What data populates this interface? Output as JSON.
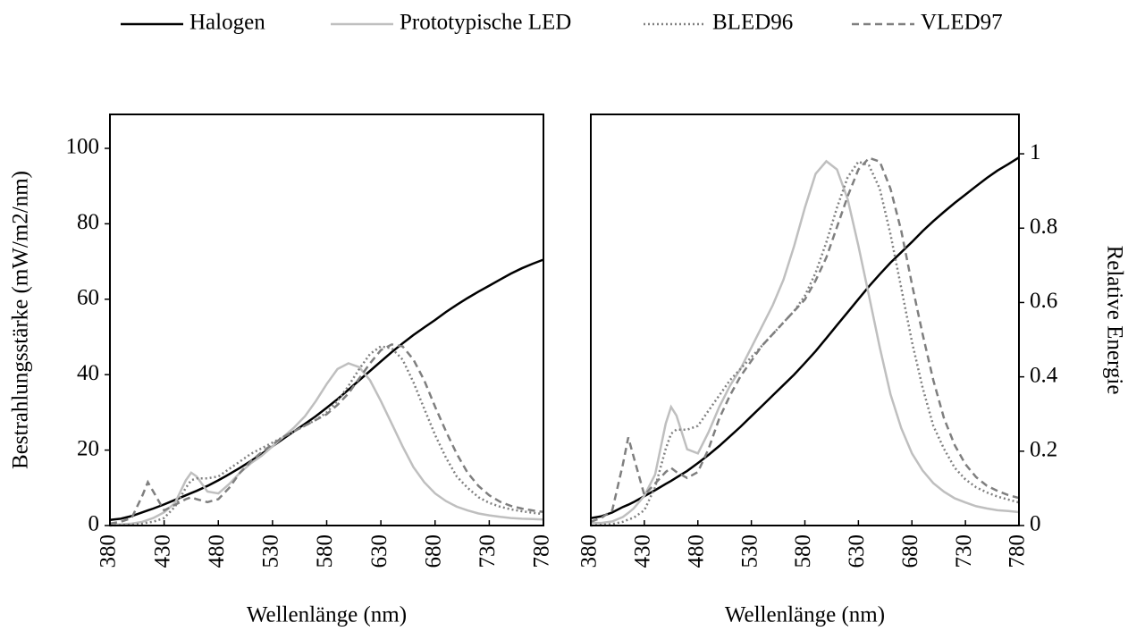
{
  "chart_data": [
    {
      "type": "line",
      "xlabel": "Wellenlänge (nm)",
      "ylabel": "Bestrahlungsstärke (mW/m2/nm)",
      "yaxis_side": "left",
      "xlim": [
        380,
        780
      ],
      "xticks": [
        380,
        430,
        480,
        530,
        580,
        630,
        680,
        730,
        780
      ],
      "ylim": [
        0,
        109
      ],
      "yticks": [
        0,
        20,
        40,
        60,
        80,
        100
      ],
      "grid": false,
      "x": [
        380,
        390,
        400,
        410,
        415,
        420,
        430,
        440,
        450,
        455,
        460,
        470,
        480,
        490,
        500,
        510,
        520,
        530,
        540,
        550,
        560,
        570,
        580,
        590,
        600,
        610,
        620,
        630,
        640,
        650,
        660,
        670,
        680,
        690,
        700,
        710,
        720,
        730,
        740,
        750,
        760,
        770,
        780
      ],
      "series": [
        {
          "name": "Halogen",
          "color": "#000000",
          "dash": "solid",
          "values": [
            1.5,
            1.8,
            2.5,
            3.5,
            4.0,
            4.5,
            5.6,
            6.8,
            8.0,
            8.6,
            9.2,
            10.5,
            12,
            13.6,
            15.3,
            17.1,
            19,
            21,
            23,
            25,
            27,
            29,
            31.2,
            33.5,
            36,
            38.5,
            41,
            43.5,
            46,
            48.3,
            50.5,
            52.5,
            54.5,
            56.6,
            58.5,
            60.3,
            62,
            63.6,
            65.2,
            66.8,
            68.2,
            69.4,
            70.5
          ]
        },
        {
          "name": "Prototypische LED",
          "color": "#bfbfbf",
          "dash": "solid",
          "values": [
            0.3,
            0.3,
            0.5,
            1,
            1.5,
            2,
            3.5,
            6,
            12,
            14,
            13,
            9,
            8.5,
            11,
            14,
            16.5,
            18.5,
            21,
            23.5,
            26,
            29,
            33,
            37.5,
            41.5,
            43,
            42,
            38.5,
            33,
            27,
            21,
            15.5,
            11.5,
            8.5,
            6.5,
            5,
            4,
            3.2,
            2.7,
            2.3,
            2,
            1.8,
            1.7,
            1.6
          ]
        },
        {
          "name": "BLED96",
          "color": "#808080",
          "dash": "dotted",
          "values": [
            0,
            0.1,
            0.2,
            0.5,
            0.8,
            1,
            2,
            5,
            10,
            12,
            12.5,
            12.5,
            13,
            15,
            17,
            19,
            20.5,
            22,
            23.5,
            25,
            26.5,
            28,
            30,
            33,
            37,
            41.5,
            45.5,
            47.5,
            47,
            44,
            38,
            31,
            24,
            18,
            13,
            10,
            7.5,
            6,
            5,
            4.3,
            3.8,
            3.4,
            3
          ]
        },
        {
          "name": "VLED97",
          "color": "#7f7f7f",
          "dash": "dashed",
          "values": [
            0.5,
            1,
            2,
            8,
            11.5,
            9,
            4,
            5.5,
            7,
            7.5,
            7,
            6.2,
            7,
            10,
            14,
            17,
            19.5,
            21.5,
            23.5,
            25,
            26.5,
            28,
            29.5,
            32,
            35,
            39,
            43,
            46.5,
            48,
            47.5,
            44,
            38.5,
            31.5,
            25,
            19,
            14,
            10.5,
            8,
            6.3,
            5.2,
            4.5,
            4,
            3.6
          ]
        }
      ]
    },
    {
      "type": "line",
      "xlabel": "Wellenlänge (nm)",
      "ylabel": "Relative Energie",
      "yaxis_side": "right",
      "xlim": [
        380,
        780
      ],
      "xticks": [
        380,
        430,
        480,
        530,
        580,
        630,
        680,
        730,
        780
      ],
      "ylim": [
        0,
        1.106
      ],
      "yticks": [
        0,
        0.2,
        0.4,
        0.6,
        0.8,
        1
      ],
      "grid": false,
      "x": [
        380,
        390,
        400,
        410,
        415,
        420,
        430,
        440,
        450,
        455,
        460,
        470,
        480,
        490,
        500,
        510,
        520,
        530,
        540,
        550,
        560,
        570,
        580,
        590,
        600,
        610,
        620,
        630,
        640,
        650,
        660,
        670,
        680,
        690,
        700,
        710,
        720,
        730,
        740,
        750,
        760,
        770,
        780
      ],
      "series": [
        {
          "color": "#000000",
          "dash": "solid",
          "values": [
            0.02,
            0.025,
            0.035,
            0.05,
            0.056,
            0.063,
            0.079,
            0.095,
            0.112,
            0.12,
            0.129,
            0.147,
            0.168,
            0.19,
            0.214,
            0.24,
            0.266,
            0.294,
            0.322,
            0.35,
            0.378,
            0.406,
            0.437,
            0.469,
            0.504,
            0.539,
            0.574,
            0.609,
            0.644,
            0.676,
            0.707,
            0.735,
            0.763,
            0.792,
            0.819,
            0.844,
            0.868,
            0.89,
            0.913,
            0.935,
            0.955,
            0.972,
            0.99
          ]
        },
        {
          "color": "#bfbfbf",
          "dash": "solid",
          "values": [
            0.007,
            0.007,
            0.011,
            0.023,
            0.034,
            0.046,
            0.08,
            0.137,
            0.274,
            0.319,
            0.296,
            0.205,
            0.194,
            0.251,
            0.319,
            0.376,
            0.422,
            0.479,
            0.536,
            0.593,
            0.661,
            0.752,
            0.855,
            0.946,
            0.98,
            0.958,
            0.878,
            0.752,
            0.616,
            0.479,
            0.353,
            0.262,
            0.194,
            0.148,
            0.114,
            0.091,
            0.073,
            0.062,
            0.052,
            0.046,
            0.041,
            0.039,
            0.036
          ]
        },
        {
          "color": "#808080",
          "dash": "dotted",
          "values": [
            0,
            0.002,
            0.004,
            0.01,
            0.016,
            0.021,
            0.041,
            0.103,
            0.206,
            0.247,
            0.258,
            0.258,
            0.268,
            0.309,
            0.35,
            0.391,
            0.422,
            0.453,
            0.484,
            0.515,
            0.546,
            0.577,
            0.618,
            0.68,
            0.762,
            0.855,
            0.937,
            0.979,
            0.968,
            0.906,
            0.783,
            0.639,
            0.494,
            0.371,
            0.268,
            0.206,
            0.155,
            0.124,
            0.103,
            0.089,
            0.078,
            0.07,
            0.062
          ]
        },
        {
          "color": "#7f7f7f",
          "dash": "dashed",
          "values": [
            0.01,
            0.021,
            0.041,
            0.165,
            0.237,
            0.185,
            0.082,
            0.113,
            0.144,
            0.155,
            0.144,
            0.128,
            0.144,
            0.206,
            0.288,
            0.35,
            0.402,
            0.443,
            0.484,
            0.515,
            0.546,
            0.577,
            0.608,
            0.659,
            0.721,
            0.803,
            0.886,
            0.958,
            0.989,
            0.979,
            0.906,
            0.793,
            0.649,
            0.515,
            0.391,
            0.288,
            0.216,
            0.165,
            0.13,
            0.107,
            0.093,
            0.082,
            0.074
          ]
        }
      ]
    }
  ]
}
